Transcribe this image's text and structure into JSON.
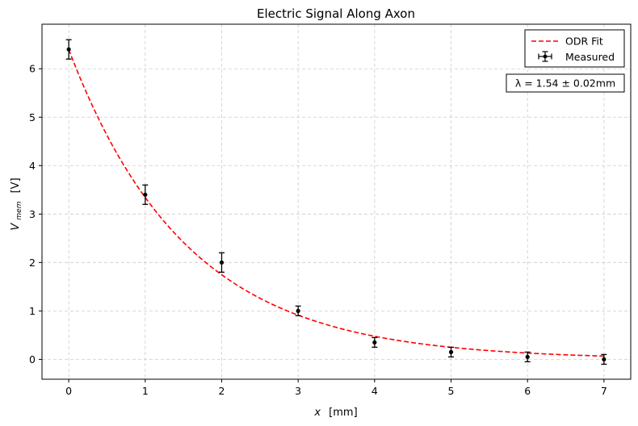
{
  "chart_data": {
    "type": "scatter",
    "title": "Electric Signal Along Axon",
    "xlabel_var": "x",
    "xlabel_unit": "[mm]",
    "ylabel_main": "V",
    "ylabel_sub": "mem",
    "ylabel_unit": "[V]",
    "xlim": [
      -0.35,
      7.35
    ],
    "ylim": [
      -0.41,
      6.92
    ],
    "xticks": [
      0,
      1,
      2,
      3,
      4,
      5,
      6,
      7
    ],
    "yticks": [
      0,
      1,
      2,
      3,
      4,
      5,
      6
    ],
    "grid": true,
    "series": [
      {
        "name": "Measured",
        "kind": "errorbar",
        "color": "#000000",
        "x": [
          0,
          1,
          2,
          3,
          4,
          5,
          6,
          7
        ],
        "y": [
          6.4,
          3.4,
          2.0,
          1.0,
          0.35,
          0.15,
          0.05,
          0.0
        ],
        "yerr": [
          0.2,
          0.2,
          0.2,
          0.1,
          0.1,
          0.1,
          0.1,
          0.1
        ]
      },
      {
        "name": "ODR Fit",
        "kind": "line",
        "style": "dashed",
        "color": "#ff0000",
        "model": "exponential decay",
        "A": 6.4,
        "lambda": 1.54,
        "x_range": [
          0,
          7
        ]
      }
    ],
    "legend_position": "top-right",
    "annotation": "λ = 1.54 ± 0.02mm"
  }
}
